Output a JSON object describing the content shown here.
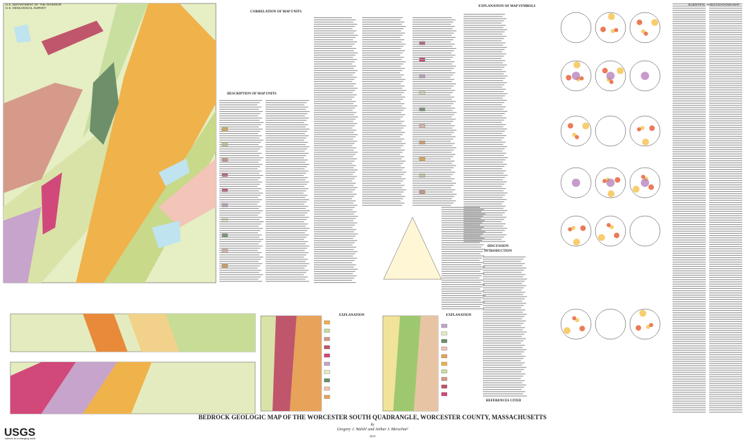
{
  "header": {
    "agency_line1": "U.S. DEPARTMENT OF THE INTERIOR",
    "agency_line2": "U.S. GEOLOGICAL SURVEY",
    "series": "SCIENTIFIC INVESTIGATIONS MAP"
  },
  "sections": {
    "correlation": "CORRELATION OF MAP UNITS",
    "description": "DESCRIPTION OF MAP UNITS",
    "symbols": "EXPLANATION OF MAP SYMBOLS",
    "discussion": "DISCUSSION",
    "introduction": "INTRODUCTION",
    "references": "REFERENCES CITED",
    "explanation_left": "EXPLANATION",
    "explanation_right": "EXPLANATION"
  },
  "title": {
    "main": "BEDROCK GEOLOGIC MAP OF THE WORCESTER SOUTH QUADRANGLE, WORCESTER COUNTY, MASSACHUSETTS",
    "by": "By",
    "authors": "Gregory J. Walsh¹ and Arthur J. Merschat²",
    "year": "2015"
  },
  "logo": {
    "name": "USGS",
    "tagline": "science for a changing world"
  }
}
